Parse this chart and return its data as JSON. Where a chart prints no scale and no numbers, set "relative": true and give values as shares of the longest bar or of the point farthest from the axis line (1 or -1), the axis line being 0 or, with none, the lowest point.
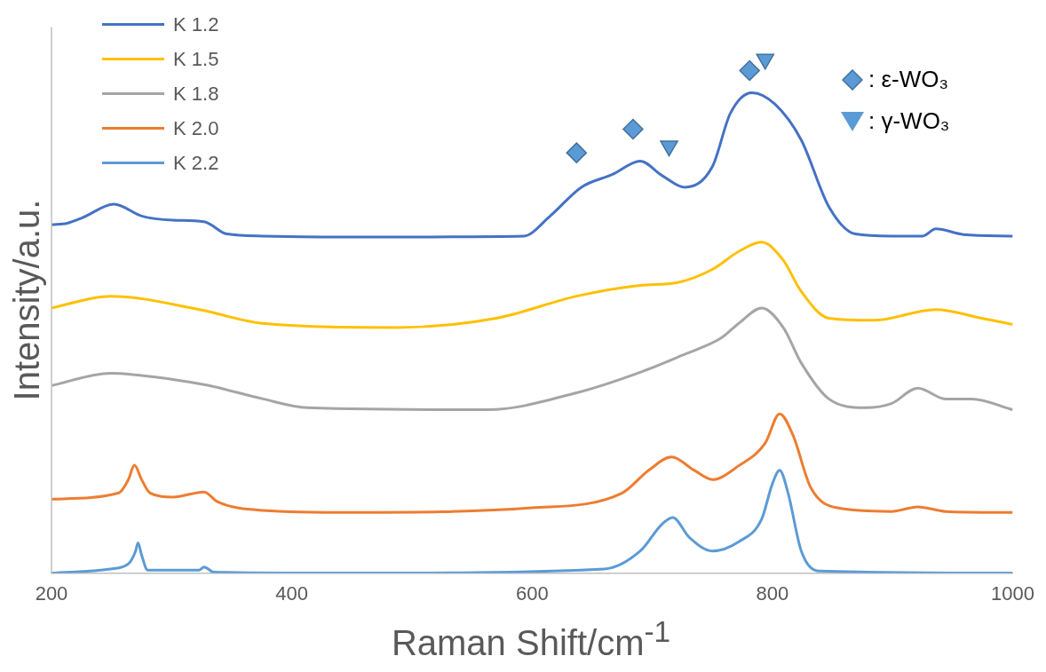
{
  "chart_data": {
    "type": "line",
    "relative": true,
    "xlabel": "Raman Shift/cm$^{-1}$",
    "ylabel": "Intensity/a.u.",
    "xlim": [
      200,
      1000
    ],
    "xticks": [
      200,
      400,
      600,
      800,
      1000
    ],
    "grid": false,
    "legend": "top left",
    "marker": "none",
    "line_style": "solid",
    "series": [
      {
        "name": "K 1.2",
        "color": "#4472c4",
        "x": [
          200,
          213,
          226,
          252,
          275,
          301,
          327,
          346,
          376,
          450,
          593,
          615,
          641,
          667,
          690,
          708,
          727,
          750,
          765,
          783,
          802,
          824,
          847,
          869,
          899,
          925,
          936,
          959,
          1000
        ],
        "values": [
          0.678,
          0.681,
          0.692,
          0.718,
          0.695,
          0.687,
          0.684,
          0.66,
          0.656,
          0.654,
          0.656,
          0.695,
          0.751,
          0.776,
          0.802,
          0.774,
          0.751,
          0.791,
          0.895,
          0.935,
          0.913,
          0.843,
          0.713,
          0.66,
          0.656,
          0.656,
          0.67,
          0.659,
          0.656
        ]
      },
      {
        "name": "K 1.5",
        "color": "#ffc000",
        "x": [
          200,
          249,
          323,
          376,
          488,
          570,
          637,
          690,
          720,
          750,
          772,
          791,
          809,
          824,
          847,
          884,
          936,
          974,
          1000
        ],
        "values": [
          0.516,
          0.539,
          0.513,
          0.486,
          0.478,
          0.496,
          0.539,
          0.56,
          0.565,
          0.591,
          0.626,
          0.644,
          0.609,
          0.548,
          0.496,
          0.492,
          0.513,
          0.496,
          0.484
        ]
      },
      {
        "name": "K 1.8",
        "color": "#a5a5a5",
        "x": [
          200,
          249,
          301,
          331,
          376,
          413,
          563,
          637,
          690,
          727,
          757,
          772,
          791,
          809,
          824,
          847,
          877,
          899,
          921,
          944,
          966,
          1000
        ],
        "values": [
          0.365,
          0.389,
          0.377,
          0.365,
          0.339,
          0.322,
          0.318,
          0.351,
          0.391,
          0.426,
          0.457,
          0.486,
          0.516,
          0.478,
          0.409,
          0.339,
          0.322,
          0.33,
          0.36,
          0.339,
          0.339,
          0.318
        ]
      },
      {
        "name": "K 2.0",
        "color": "#ed7d31",
        "x": [
          200,
          256,
          264,
          269,
          275,
          282,
          301,
          327,
          338,
          376,
          450,
          600,
          675,
          697,
          716,
          735,
          750,
          772,
          794,
          806,
          817,
          832,
          854,
          899,
          921,
          944,
          1000
        ],
        "values": [
          0.144,
          0.156,
          0.182,
          0.21,
          0.182,
          0.156,
          0.148,
          0.158,
          0.139,
          0.122,
          0.118,
          0.127,
          0.156,
          0.2,
          0.226,
          0.2,
          0.182,
          0.209,
          0.253,
          0.31,
          0.269,
          0.166,
          0.127,
          0.12,
          0.129,
          0.12,
          0.118
        ]
      },
      {
        "name": "K 2.2",
        "color": "#5b9bd5",
        "x": [
          200,
          249,
          264,
          270,
          272,
          275,
          280,
          323,
          327,
          335,
          450,
          660,
          690,
          708,
          717,
          731,
          750,
          772,
          791,
          800,
          806,
          813,
          824,
          839,
          1000
        ],
        "values": [
          0,
          0.008,
          0.018,
          0.043,
          0.059,
          0.035,
          0.006,
          0.006,
          0.012,
          0.002,
          0,
          0.008,
          0.043,
          0.095,
          0.108,
          0.069,
          0.043,
          0.061,
          0.105,
          0.174,
          0.2,
          0.156,
          0.043,
          0.004,
          0
        ]
      },
      {
        "name": ": ε-WO₃",
        "type": "scatter",
        "marker": "diamond",
        "color": "#5b9bd5",
        "x": [
          637,
          684,
          781
        ],
        "values": [
          0.818,
          0.864,
          0.978
        ]
      },
      {
        "name": ": γ-WO₃",
        "type": "scatter",
        "marker": "triangle",
        "color": "#5b9bd5",
        "x": [
          714,
          794
        ],
        "values": [
          0.831,
          1
        ]
      }
    ]
  }
}
